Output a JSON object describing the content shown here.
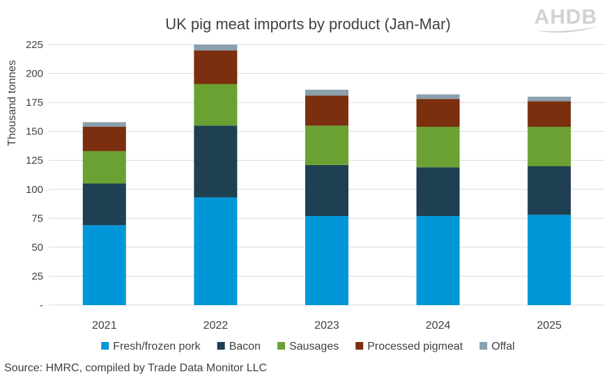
{
  "chart_data": {
    "type": "bar",
    "stacked": true,
    "title": "UK pig meat imports by product (Jan-Mar)",
    "xlabel": "",
    "ylabel": "Thousand tonnes",
    "ylim": [
      0,
      225
    ],
    "yticks": [
      "-",
      "25",
      "50",
      "75",
      "100",
      "125",
      "150",
      "175",
      "200",
      "225"
    ],
    "grid": true,
    "legend": "bottom",
    "categories": [
      "2021",
      "2022",
      "2023",
      "2024",
      "2025"
    ],
    "series": [
      {
        "name": "Fresh/frozen pork",
        "color": "#0097d8",
        "values": [
          69,
          93,
          77,
          77,
          78
        ]
      },
      {
        "name": "Bacon",
        "color": "#1f3f52",
        "values": [
          36,
          62,
          44,
          42,
          42
        ]
      },
      {
        "name": "Sausages",
        "color": "#6aa132",
        "values": [
          28,
          36,
          34,
          35,
          34
        ]
      },
      {
        "name": "Processed pigmeat",
        "color": "#7b2f0f",
        "values": [
          21,
          29,
          26,
          24,
          22
        ]
      },
      {
        "name": "Offal",
        "color": "#8aa0ad",
        "values": [
          4,
          5,
          5,
          4,
          4
        ]
      }
    ]
  },
  "logo": {
    "text": "AHDB"
  },
  "source": "Source: HMRC, compiled by Trade Data Monitor LLC"
}
